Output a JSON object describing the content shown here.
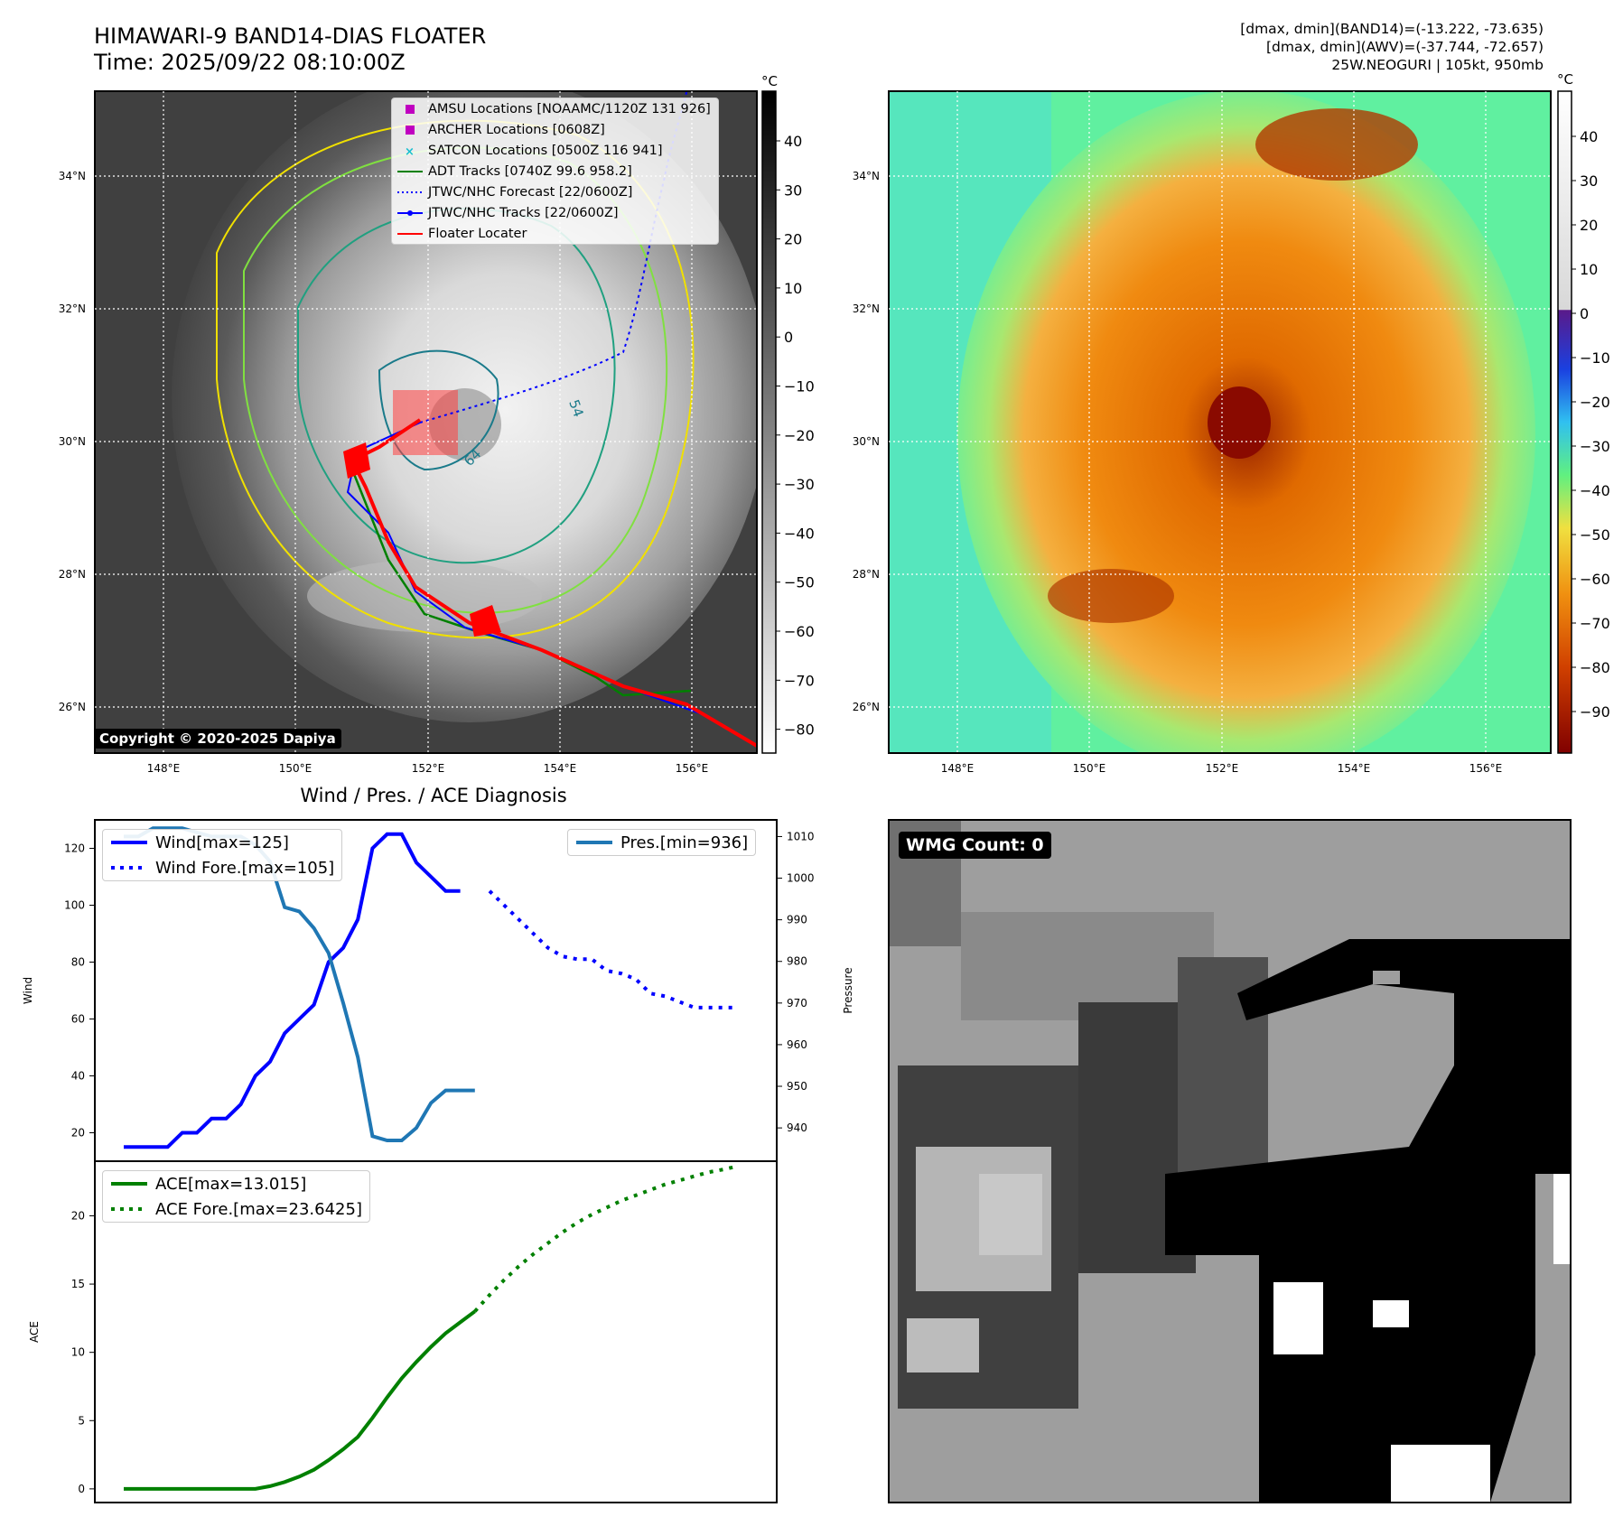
{
  "header": {
    "title_line1": "HIMAWARI-9 BAND14-DIAS FLOATER",
    "title_line2": "Time: 2025/09/22 08:10:00Z",
    "stats_line1": "[dmax, dmin](BAND14)=(-13.222, -73.635)",
    "stats_line2": "[dmax, dmin](AWV)=(-37.744, -72.657)",
    "stats_line3": "25W.NEOGURI | 105kt, 950mb"
  },
  "copyright": "Copyright © 2020-2025 Dapiya",
  "map": {
    "lon_ticks": [
      "148°E",
      "150°E",
      "152°E",
      "154°E",
      "156°E"
    ],
    "lat_ticks": [
      "34°N",
      "32°N",
      "30°N",
      "28°N",
      "26°N"
    ],
    "contour_labels": [
      "54",
      "64"
    ],
    "legend": [
      {
        "label": "AMSU Locations [NOAAMC/1120Z 131 926]",
        "marker": "square",
        "color": "#c000c0"
      },
      {
        "label": "ARCHER Locations [0608Z]",
        "marker": "square",
        "color": "#c000c0"
      },
      {
        "label": "SATCON Locations [0500Z 116 941]",
        "marker": "x",
        "color": "#17becf"
      },
      {
        "label": "ADT Tracks [0740Z 99.6 958.2]",
        "marker": "line",
        "color": "#008000"
      },
      {
        "label": "JTWC/NHC Forecast [22/0600Z]",
        "marker": "dotted",
        "color": "#0000ff"
      },
      {
        "label": "JTWC/NHC Tracks [22/0600Z]",
        "marker": "line-dot",
        "color": "#0000ff"
      },
      {
        "label": "Floater Locater",
        "marker": "line",
        "color": "#ff0000"
      }
    ]
  },
  "colorbar_gray": {
    "unit": "°C",
    "ticks": [
      "40",
      "30",
      "20",
      "10",
      "0",
      "−10",
      "−20",
      "−30",
      "−40",
      "−50",
      "−60",
      "−70",
      "−80"
    ]
  },
  "colorbar_color": {
    "unit": "°C",
    "ticks": [
      "40",
      "30",
      "20",
      "10",
      "0",
      "−10",
      "−20",
      "−30",
      "−40",
      "−50",
      "−60",
      "−70",
      "−80",
      "−90"
    ]
  },
  "diag_title": "Wind / Pres. / ACE Diagnosis",
  "wmg_label": "WMG Count: 0",
  "chart_data": [
    {
      "type": "line",
      "title": "Wind / Pres. / ACE Diagnosis",
      "ylabel": "Wind",
      "ylabel_right": "Pressure",
      "ylim": [
        10,
        130
      ],
      "ylim_right": [
        932,
        1014
      ],
      "yticks": [
        20,
        40,
        60,
        80,
        100,
        120
      ],
      "yticks_right": [
        940,
        950,
        960,
        970,
        980,
        990,
        1000,
        1010
      ],
      "series": [
        {
          "name": "Wind[max=125]",
          "color": "#0000ff",
          "style": "solid",
          "axis": "left",
          "x": [
            0,
            1,
            2,
            3,
            4,
            5,
            6,
            7,
            8,
            9,
            10,
            11,
            12,
            13,
            14,
            15,
            16,
            17,
            18,
            19,
            20,
            21,
            22,
            23,
            24,
            25
          ],
          "values": [
            15,
            15,
            15,
            15,
            20,
            20,
            25,
            25,
            30,
            40,
            45,
            55,
            60,
            65,
            80,
            85,
            95,
            120,
            125,
            125,
            115,
            110,
            105,
            105,
            null,
            null
          ]
        },
        {
          "name": "Wind Fore.[max=105]",
          "color": "#0000ff",
          "style": "dotted",
          "axis": "left",
          "x": [
            25,
            26,
            27,
            28,
            29,
            30,
            31,
            32,
            33,
            34,
            35,
            36,
            37,
            38,
            39,
            40,
            41,
            42
          ],
          "values": [
            105,
            100,
            95,
            90,
            85,
            82,
            81,
            81,
            77,
            76,
            74,
            69,
            68,
            66,
            64,
            64,
            64,
            64
          ]
        },
        {
          "name": "Pres.[min=936]",
          "color": "#1f77b4",
          "style": "solid",
          "axis": "right",
          "x": [
            0,
            1,
            2,
            3,
            4,
            5,
            6,
            7,
            8,
            9,
            10,
            11,
            12,
            13,
            14,
            15,
            16,
            17,
            18,
            19,
            20,
            21,
            22,
            23,
            24
          ],
          "values": [
            1010,
            1010,
            1012,
            1012,
            1012,
            1011,
            1010,
            1010,
            1010,
            1008,
            1004,
            993,
            992,
            988,
            982,
            970,
            957,
            938,
            937,
            937,
            940,
            946,
            949,
            949,
            949
          ]
        }
      ]
    },
    {
      "type": "line",
      "ylabel": "ACE",
      "ylim": [
        -1,
        24
      ],
      "yticks": [
        0,
        5,
        10,
        15,
        20
      ],
      "series": [
        {
          "name": "ACE[max=13.015]",
          "color": "#008000",
          "style": "solid",
          "x": [
            0,
            2,
            4,
            6,
            8,
            9,
            10,
            11,
            12,
            13,
            14,
            15,
            16,
            17,
            18,
            19,
            20,
            21,
            22,
            23,
            24,
            25
          ],
          "values": [
            0,
            0,
            0,
            0,
            0,
            0,
            0.2,
            0.5,
            0.9,
            1.4,
            2.1,
            2.9,
            3.8,
            5.2,
            6.7,
            8.1,
            9.3,
            10.4,
            11.4,
            12.2,
            13.0,
            null
          ]
        },
        {
          "name": "ACE Fore.[max=23.6425]",
          "color": "#008000",
          "style": "dotted",
          "x": [
            24,
            25,
            26,
            27,
            28,
            29,
            30,
            31,
            32,
            33,
            34,
            35,
            36,
            37,
            38,
            39,
            40,
            41,
            42
          ],
          "values": [
            13.0,
            14.2,
            15.3,
            16.3,
            17.2,
            18.0,
            18.8,
            19.5,
            20.1,
            20.6,
            21.1,
            21.5,
            21.9,
            22.3,
            22.6,
            22.9,
            23.2,
            23.4,
            23.64
          ]
        }
      ]
    }
  ]
}
